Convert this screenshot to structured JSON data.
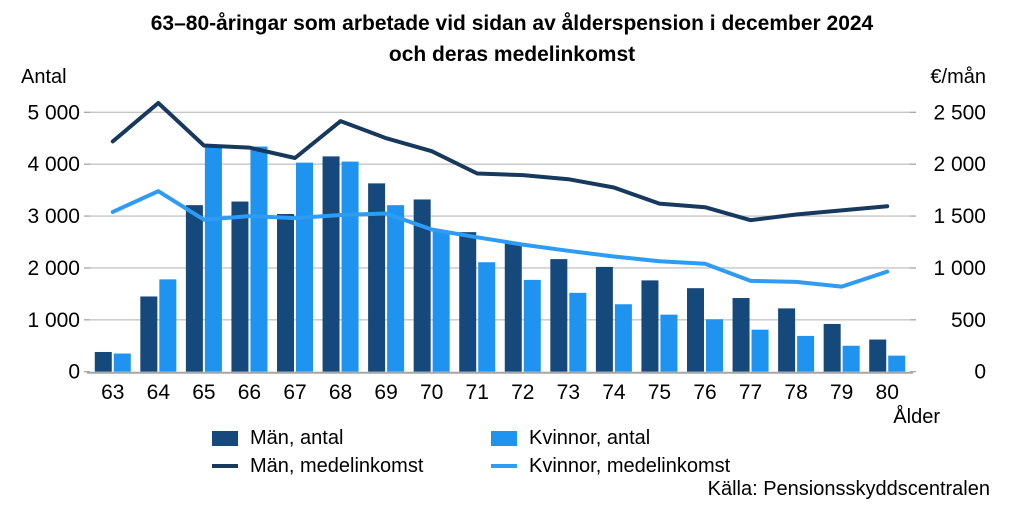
{
  "title": {
    "line1": "63–80-åringar som arbetade vid sidan av ålderspension i december 2024",
    "line2": "och deras medelinkomst"
  },
  "source": "Källa: Pensionsskyddscentralen",
  "colors": {
    "men_bar": "#15497B",
    "women_bar": "#1E93F0",
    "men_line": "#17395E",
    "women_line": "#2E9BF5",
    "gridline": "#C6C6C6",
    "axis_line": "#A6A6A6",
    "text": "#000000"
  },
  "legend": {
    "items": [
      {
        "label": "Män, antal",
        "swatch": "square",
        "color": "#15497B"
      },
      {
        "label": "Kvinnor, antal",
        "swatch": "square",
        "color": "#1E93F0"
      },
      {
        "label": "Män, medelinkomst",
        "swatch": "line",
        "color": "#17395E"
      },
      {
        "label": "Kvinnor, medelinkomst",
        "swatch": "line",
        "color": "#2E9BF5"
      }
    ]
  },
  "chart_data": {
    "type": "bar+line combo",
    "categories": [
      63,
      64,
      65,
      66,
      67,
      68,
      69,
      70,
      71,
      72,
      73,
      74,
      75,
      76,
      77,
      78,
      79,
      80
    ],
    "xlabel": "Ålder",
    "ylabel_left": "Antal",
    "ylabel_right": "€/mån",
    "ylim_left": [
      0,
      5000
    ],
    "ylim_right": [
      0,
      2500
    ],
    "y_ticks_left": {
      "values": [
        0,
        1000,
        2000,
        3000,
        4000,
        5000
      ],
      "labels": [
        "0",
        "1 000",
        "2 000",
        "3 000",
        "4 000",
        "5 000"
      ]
    },
    "y_ticks_right": {
      "values": [
        0,
        500,
        1000,
        1500,
        2000,
        2500
      ],
      "labels": [
        "0",
        "500",
        "1 000",
        "1 500",
        "2 000",
        "2 500"
      ]
    },
    "grid": true,
    "legend_position": "bottom",
    "series": [
      {
        "name": "Män, antal",
        "id": "men-count",
        "type": "bar",
        "axis": "left",
        "color": "#15497B",
        "values": [
          380,
          1450,
          3210,
          3280,
          3040,
          4150,
          3630,
          3320,
          2690,
          2480,
          2170,
          2020,
          1760,
          1610,
          1420,
          1220,
          920,
          620
        ]
      },
      {
        "name": "Kvinnor, antal",
        "id": "women-count",
        "type": "bar",
        "axis": "left",
        "color": "#1E93F0",
        "values": [
          350,
          1780,
          4330,
          4340,
          4030,
          4050,
          3210,
          2700,
          2110,
          1770,
          1520,
          1300,
          1100,
          1010,
          810,
          690,
          500,
          310
        ]
      },
      {
        "name": "Män, medelinkomst",
        "id": "men-income",
        "type": "line",
        "axis": "right",
        "color": "#17395E",
        "values": [
          2220,
          2590,
          2180,
          2160,
          2060,
          2415,
          2250,
          2125,
          1910,
          1895,
          1855,
          1775,
          1620,
          1585,
          1460,
          1515,
          1555,
          1595
        ]
      },
      {
        "name": "Kvinnor, medelinkomst",
        "id": "women-income",
        "type": "line",
        "axis": "right",
        "color": "#2E9BF5",
        "values": [
          1540,
          1740,
          1465,
          1500,
          1480,
          1510,
          1525,
          1370,
          1295,
          1225,
          1165,
          1110,
          1065,
          1040,
          875,
          865,
          820,
          965
        ]
      }
    ]
  }
}
